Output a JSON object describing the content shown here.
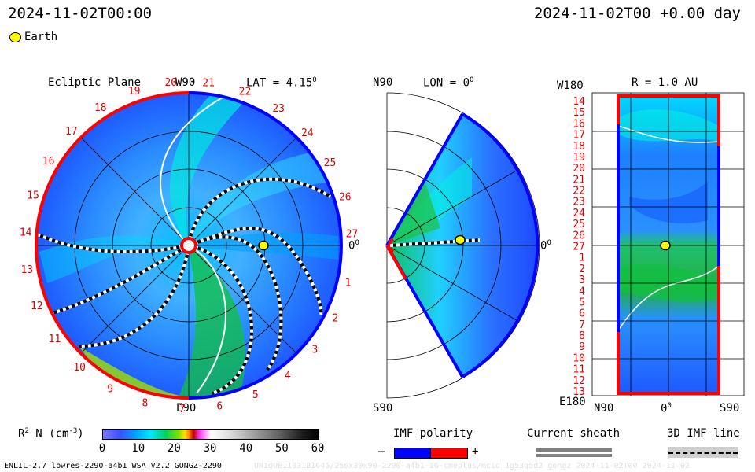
{
  "header": {
    "left_timestamp": "2024-11-02T00:00",
    "right_timestamp": "2024-11-02T00 +0.00 day"
  },
  "legend_top": {
    "earth_label": "Earth",
    "earth_color": "#ffff00"
  },
  "panel_ecliptic": {
    "title": "Ecliptic Plane",
    "lat_label": "LAT = 4.15",
    "lat_sup": "0",
    "w90": "W90",
    "e90": "E90",
    "zero_label": "0",
    "zero_sup": "0",
    "rotation_numbers": [
      "1",
      "2",
      "3",
      "4",
      "5",
      "6",
      "7",
      "8",
      "9",
      "10",
      "11",
      "12",
      "13",
      "14",
      "15",
      "16",
      "17",
      "18",
      "19",
      "20",
      "21",
      "22",
      "23",
      "24",
      "25",
      "26",
      "27"
    ]
  },
  "panel_meridional": {
    "n90": "N90",
    "s90": "S90",
    "lon_label": "LON = 0",
    "lon_sup": "0",
    "zero_label": "0",
    "zero_sup": "0"
  },
  "panel_sphere": {
    "title": "R = 1.0 AU",
    "w180": "W180",
    "e180": "E180",
    "n90": "N90",
    "zero": "0",
    "zero_sup": "0",
    "s90": "S90",
    "left_ticks": [
      "14",
      "15",
      "16",
      "17",
      "18",
      "19",
      "20",
      "21",
      "22",
      "23",
      "24",
      "25",
      "26",
      "27",
      "1",
      "2",
      "3",
      "4",
      "5",
      "6",
      "7",
      "8",
      "9",
      "10",
      "11",
      "12",
      "13"
    ]
  },
  "colorbar": {
    "label_prefix": "R",
    "label_sup": "2",
    "label_mid": "N (cm",
    "label_sup2": "-3",
    "label_end": ")",
    "ticks": [
      "0",
      "10",
      "20",
      "30",
      "40",
      "50",
      "60"
    ],
    "range": [
      0,
      60
    ]
  },
  "imf_polarity": {
    "title": "IMF polarity",
    "minus": "–",
    "plus": "+",
    "neg_color": "#0000ff",
    "pos_color": "#ff0000"
  },
  "current_sheath": {
    "title": "Current sheath"
  },
  "imf_line": {
    "title": "3D IMF line"
  },
  "footer": {
    "model_info": "ENLIL-2.7 lowres-2290-a4b1 WSA_V2.2 GONGZ-2290",
    "watermark": "UNIQUE1103181645/256x30x90-2290-a4b1-16-cmeplus/mcid_1g53q5d2 gongz 2024-11-02T00 2024-11-02"
  }
}
